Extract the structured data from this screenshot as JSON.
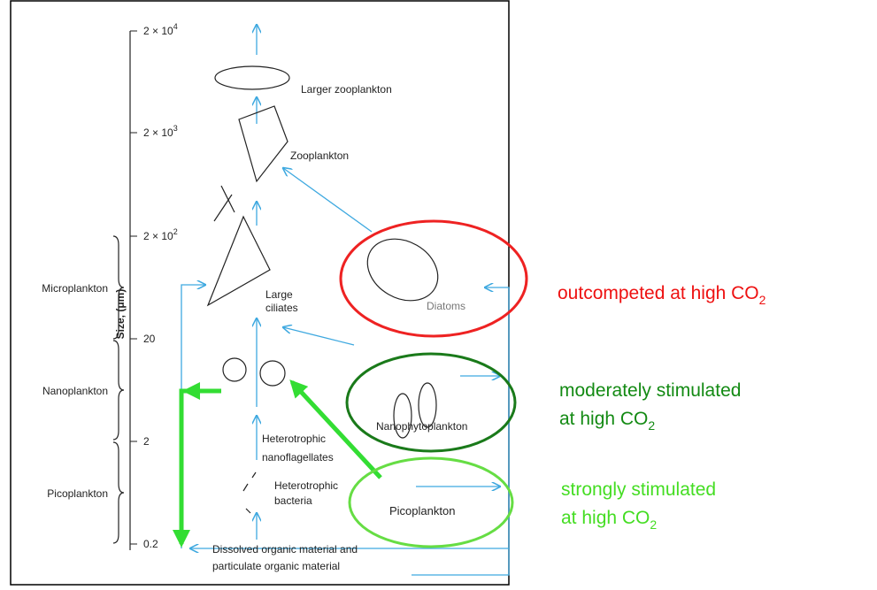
{
  "axis": {
    "title": "Size, (μm)",
    "ticks": [
      {
        "base": "2 × 10",
        "exp": "4"
      },
      {
        "base": "2 × 10",
        "exp": "3"
      },
      {
        "base": "2 × 10",
        "exp": "2"
      },
      {
        "base": "20"
      },
      {
        "base": "2"
      },
      {
        "base": "0.2"
      }
    ],
    "classes": [
      "Microplankton",
      "Nanoplankton",
      "Picoplankton"
    ]
  },
  "labels": {
    "larger_zooplankton": "Larger zooplankton",
    "zooplankton": "Zooplankton",
    "large_ciliates": [
      "Large",
      "ciliates"
    ],
    "diatoms": "Diatoms",
    "nanophytoplankton": "Nanophytoplankton",
    "flagellates": [
      "Heterotrophic",
      "nanoflagellates"
    ],
    "bacteria": [
      "Heterotrophic",
      "bacteria"
    ],
    "picoplankton": "Picoplankton",
    "dissolved": [
      "Dissolved organic material and",
      "particulate organic material"
    ]
  },
  "annotations": [
    {
      "lines": [
        "outcompeted at high CO"
      ],
      "sub": "2"
    },
    {
      "lines": [
        "moderately stimulated",
        "at high CO"
      ],
      "sub": "2"
    },
    {
      "lines": [
        "strongly stimulated",
        "at high CO"
      ],
      "sub": "2"
    }
  ]
}
